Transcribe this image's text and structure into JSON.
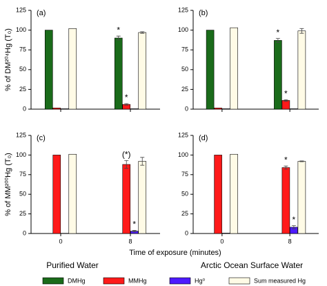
{
  "x_label": "Time of exposure (minutes)",
  "column_titles": [
    "Purified Water",
    "Arctic Ocean Surface Water"
  ],
  "legend": {
    "names": [
      "DMHg",
      "MMHg",
      "Hg⁰",
      "Sum measured Hg"
    ],
    "colors": [
      "#1a6b1a",
      "#ff1a1a",
      "#4d1aff",
      "#fffbe6"
    ]
  },
  "chart_data": [
    {
      "type": "bar",
      "label": "(a)",
      "y_label": "% of DM²⁰⁴Hg (T₀)",
      "ylim": [
        0,
        125
      ],
      "yticks": [
        0,
        25,
        50,
        75,
        100,
        125
      ],
      "series": [
        {
          "values": [
            100,
            90
          ],
          "errors": [
            null,
            2.5
          ],
          "significance": [
            null,
            "*"
          ]
        },
        {
          "values": [
            1.5,
            6
          ],
          "errors": [
            null,
            1
          ],
          "significance": [
            null,
            "*"
          ]
        },
        {
          "values": [
            0.5,
            0.5
          ],
          "errors": [
            null,
            null
          ],
          "significance": [
            null,
            null
          ]
        },
        {
          "values": [
            102,
            97
          ],
          "errors": [
            null,
            1
          ],
          "significance": [
            null,
            null
          ]
        }
      ]
    },
    {
      "type": "bar",
      "label": "(b)",
      "ylim": [
        0,
        125
      ],
      "yticks": [
        0,
        25,
        50,
        75,
        100,
        125
      ],
      "series": [
        {
          "values": [
            100,
            87
          ],
          "errors": [
            null,
            2.5
          ],
          "significance": [
            null,
            "*"
          ]
        },
        {
          "values": [
            1.5,
            11
          ],
          "errors": [
            null,
            1
          ],
          "significance": [
            null,
            "*"
          ]
        },
        {
          "values": [
            0.5,
            0.5
          ],
          "errors": [
            null,
            null
          ],
          "significance": [
            null,
            null
          ]
        },
        {
          "values": [
            103,
            99
          ],
          "errors": [
            null,
            3
          ],
          "significance": [
            null,
            null
          ]
        }
      ]
    },
    {
      "type": "bar",
      "label": "(c)",
      "y_label": "% of MM²⁰⁰Hg (T₀)",
      "categories": [
        "0",
        "8"
      ],
      "ylim": [
        0,
        125
      ],
      "yticks": [
        0,
        25,
        50,
        75,
        100,
        125
      ],
      "series": [
        {
          "values": [
            null,
            null
          ],
          "errors": [
            null,
            null
          ],
          "significance": [
            null,
            null
          ]
        },
        {
          "values": [
            100,
            88
          ],
          "errors": [
            null,
            5
          ],
          "significance": [
            null,
            "(*)"
          ]
        },
        {
          "values": [
            0.3,
            3
          ],
          "errors": [
            null,
            1
          ],
          "significance": [
            null,
            "*"
          ]
        },
        {
          "values": [
            101,
            92
          ],
          "errors": [
            null,
            5
          ],
          "significance": [
            null,
            null
          ]
        }
      ]
    },
    {
      "type": "bar",
      "label": "(d)",
      "categories": [
        "0",
        "8"
      ],
      "ylim": [
        0,
        125
      ],
      "yticks": [
        0,
        25,
        50,
        75,
        100,
        125
      ],
      "series": [
        {
          "values": [
            null,
            null
          ],
          "errors": [
            null,
            null
          ],
          "significance": [
            null,
            null
          ]
        },
        {
          "values": [
            100,
            84
          ],
          "errors": [
            null,
            2
          ],
          "significance": [
            null,
            "*"
          ]
        },
        {
          "values": [
            0.5,
            8
          ],
          "errors": [
            null,
            2
          ],
          "significance": [
            null,
            "*"
          ]
        },
        {
          "values": [
            101,
            92
          ],
          "errors": [
            null,
            0.5
          ],
          "significance": [
            null,
            null
          ]
        }
      ]
    }
  ]
}
